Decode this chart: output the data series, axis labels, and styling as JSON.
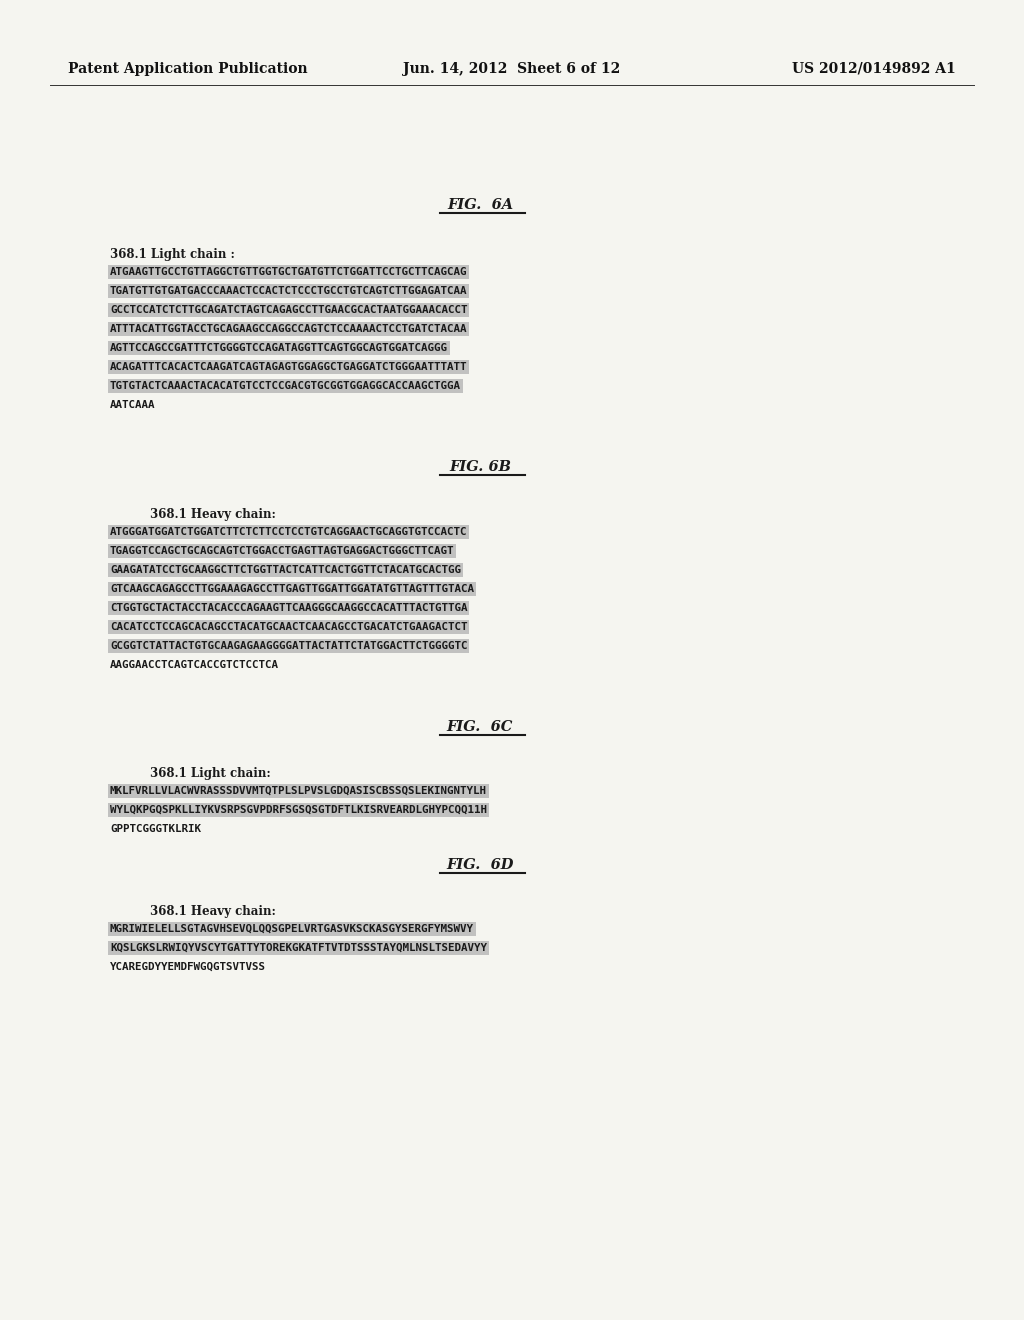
{
  "background_color": "#f5f5f0",
  "header_left": "Patent Application Publication",
  "header_center": "Jun. 14, 2012  Sheet 6 of 12",
  "header_right": "US 2012/0149892 A1",
  "fig_6a_title": "FIG.  6A",
  "fig_6b_title": "FIG. 6B",
  "fig_6c_title": "FIG.  6C",
  "fig_6d_title": "FIG.  6D",
  "fig_6a_label": "368.1 Light chain :",
  "fig_6b_label": "368.1 Heavy chain:",
  "fig_6c_label": "368.1 Light chain:",
  "fig_6d_label": "368.1 Heavy chain:",
  "lines_6a": [
    "ATGAAGTTGCCTGTTAGGCTGTTGGTGCTGATGTTCTGGATTCCTGCTTCAGCAG",
    "TGATGTTGTGATGACCCAAACTCCACTCTCCCTGCCTGTCAGTCTTGGAGATCAA",
    "GCCTCCATCTCTTGCAGATCTAGTCAGAGCCTTGAACGCACTAATGGAAACACCT",
    "ATTTACATTGGTACCTGCAGAAGCCAGGCCAGTCTCCAAAACTCCTGATCTACAA",
    "AGTTCCAGCCGATTTCTGGGGTCCAGATAGGTTCAGTGGCAGTGGATCAGGG",
    "ACAGATTTCACACTCAAGATCAGTAGAGTGGAGGCTGAGGATCTGGGAATTTATT",
    "TGTGTACTCAAACTACACATGTCCTCCGACGTGCGGTGGAGGCACCAAGCTGGA",
    "AATCAAA"
  ],
  "lines_6b": [
    "ATGGGATGGATCTGGATCTTCTCTTCCTCCTGTCAGGAACTGCAGGTGTCCACTC",
    "TGAGGTCCAGCTGCAGCAGTCTGGACCTGAGTTAGTGAGGACTGGGCTTCAGT",
    "GAAGATATCCTGCAAGGCTTCTGGTTACTCATTCACTGGTTCTACATGCACTGG",
    "GTCAAGCAGAGCCTTGGAAAGAGCCTTGAGTTGGATTGGATATGTTAGTTTGTACA",
    "CTGGTGCTACTACCTACACCCAGAAGTTCAAGGGCAAGGCCACATTTACTGTTGA",
    "CACATCCTCCAGCACAGCCTACATGCAACTCAACAGCCTGACATCTGAAGACTCT",
    "GCGGTCTATTACTGTGCAAGAGAAGGGGATTACTATTCTATGGACTTCTGGGGTC",
    "AAGGAACCTCAGTCACCGTCTCCTCA"
  ],
  "lines_6c": [
    "MKLFVRLLVLACWVRASSSDVVMTQTPLSLPVSLGDQASISCBSSQSLEKINGNTYLH",
    "WYLQKPGQSPKLLIYKVSRPSGVPDRFSGSQSGTDFTLKISRVEARDLGHYPCQQ11H",
    "GPPTCGGGTKLRIK"
  ],
  "lines_6d": [
    "MGRIWIELELLSGTAGVHSEVQLQQSGPELVRTGASVKSCKASGYSERGFYMSWVY",
    "KQSLGKSLRWIQYVSCYTGATTYTOREKGKATFTVTDTSSSTAYQMLNSLTSEDAVYY",
    "YCAREGDYYEMDFWGQGTSVTVSS"
  ],
  "highlight_color": "#b8b8b8",
  "text_color": "#1a1a1a",
  "seq_fontsize": 7.8,
  "label_fontsize": 8.5,
  "title_fontsize": 10.5,
  "header_fontsize": 10.0
}
